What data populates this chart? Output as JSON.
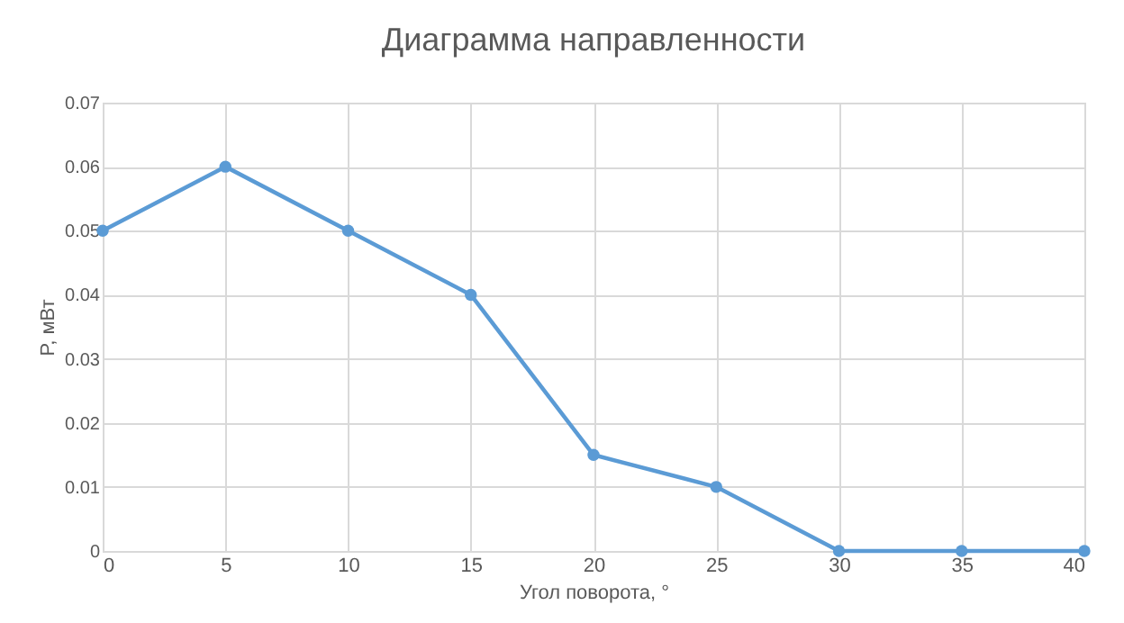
{
  "chart_data": {
    "type": "line",
    "title": "Диаграмма направленности",
    "xlabel": "Угол поворота, °",
    "ylabel": "P, мВт",
    "x": [
      0,
      5,
      10,
      15,
      20,
      25,
      30,
      35,
      40
    ],
    "series": [
      {
        "color": "#5b9bd5",
        "values": [
          0.05,
          0.06,
          0.05,
          0.04,
          0.015,
          0.01,
          0,
          0,
          0
        ]
      }
    ],
    "xlim": [
      0,
      40
    ],
    "xticks": [
      0,
      5,
      10,
      15,
      20,
      25,
      30,
      35,
      40
    ],
    "ylim": [
      0,
      0.07
    ],
    "yticks": [
      0,
      0.01,
      0.02,
      0.03,
      0.04,
      0.05,
      0.06,
      0.07
    ],
    "grid": true,
    "marker": "circle",
    "line_style": "solid"
  }
}
